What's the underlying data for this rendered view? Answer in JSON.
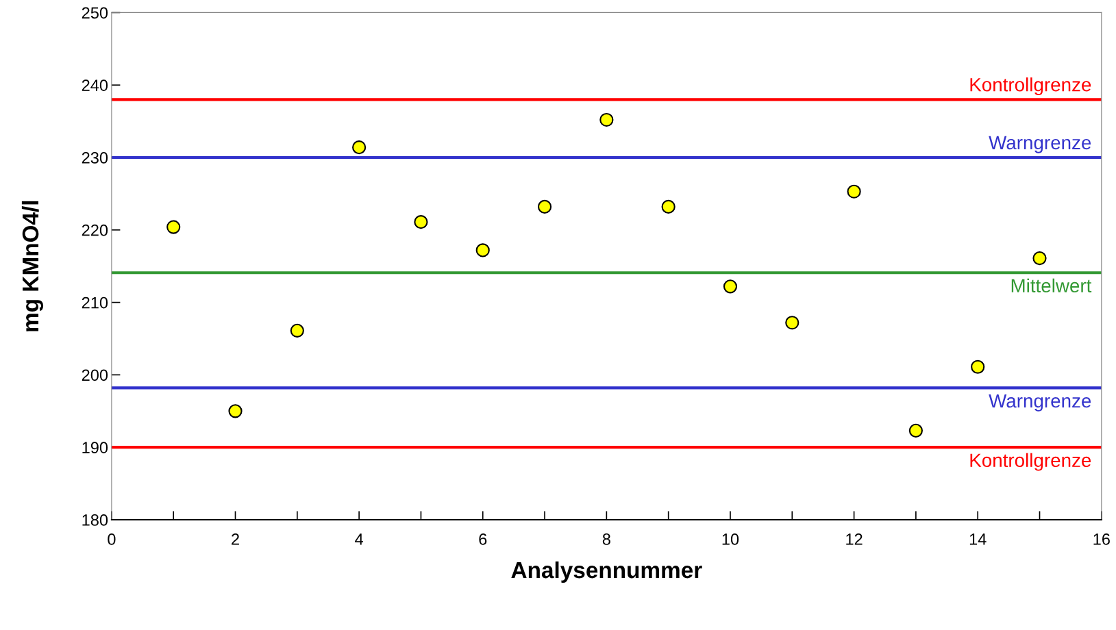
{
  "chart_data": {
    "type": "scatter",
    "xlabel": "Analysennummer",
    "ylabel": "mg KMnO4/l",
    "x": [
      1,
      2,
      3,
      4,
      5,
      6,
      7,
      8,
      9,
      10,
      11,
      12,
      13,
      14,
      15
    ],
    "series": [
      {
        "color": "#ffff00",
        "values": [
          220.4,
          195.0,
          206.1,
          231.4,
          221.1,
          217.2,
          223.2,
          235.2,
          223.2,
          212.2,
          207.2,
          225.3,
          192.3,
          201.1,
          216.1
        ]
      }
    ],
    "marker": "circle",
    "xlim": [
      0,
      16
    ],
    "ylim": [
      180,
      250
    ],
    "xticks": [
      0,
      {
        "value": 1,
        "label": null
      },
      2,
      {
        "value": 3,
        "label": null
      },
      4,
      {
        "value": 5,
        "label": null
      },
      6,
      {
        "value": 7,
        "label": null
      },
      8,
      {
        "value": 9,
        "label": null
      },
      10,
      {
        "value": 11,
        "label": null
      },
      12,
      {
        "value": 13,
        "label": null
      },
      14,
      {
        "value": 15,
        "label": null
      },
      16
    ],
    "yticks": [
      180,
      190,
      200,
      210,
      220,
      230,
      240,
      250
    ],
    "grid": false,
    "ref_lines": [
      {
        "axis": "y",
        "value": 238,
        "label": "Kontrollgrenze",
        "color": "#ff0000"
      },
      {
        "axis": "y",
        "value": 230,
        "label": "Warngrenze",
        "color": "#3333cc"
      },
      {
        "axis": "y",
        "value": 214.1,
        "label": "Mittelwert",
        "color": "#339933"
      },
      {
        "axis": "y",
        "value": 198.2,
        "label": "Warngrenze",
        "color": "#3333cc"
      },
      {
        "axis": "y",
        "value": 190,
        "label": "Kontrollgrenze",
        "color": "#ff0000"
      }
    ]
  }
}
